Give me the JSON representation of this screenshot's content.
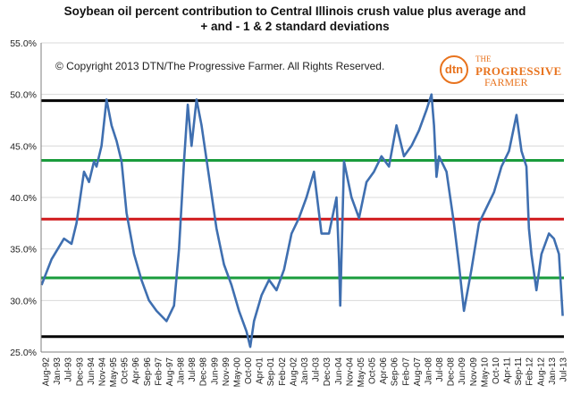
{
  "chart_data": {
    "type": "line",
    "title_line1": "Soybean oil percent contribution to Central Illinois crush value plus average and",
    "title_line2": "+ and - 1 & 2 standard deviations",
    "annotation": "© Copyright 2013 DTN/The Progressive Farmer. All Rights Reserved.",
    "logo": {
      "mark": "dtn",
      "line1": "THE",
      "line2": "PROGRESSIVE",
      "line3": "FARMER"
    },
    "ylim": [
      25.0,
      55.0
    ],
    "y_ticks": [
      "25.0%",
      "30.0%",
      "35.0%",
      "40.0%",
      "45.0%",
      "50.0%",
      "55.0%"
    ],
    "x_ticks": [
      "Aug-92",
      "Jan-93",
      "Jul-93",
      "Dec-93",
      "Jun-94",
      "Nov-94",
      "May-95",
      "Oct-95",
      "Apr-96",
      "Sep-96",
      "Feb-97",
      "Aug-97",
      "Jan-98",
      "Jul-98",
      "Dec-98",
      "Jun-99",
      "Nov-99",
      "May-00",
      "Oct-00",
      "Apr-01",
      "Sep-01",
      "Feb-02",
      "Aug-02",
      "Jan-03",
      "Jul-03",
      "Dec-03",
      "Jun-04",
      "Nov-04",
      "May-05",
      "Oct-05",
      "Apr-06",
      "Sep-06",
      "Feb-07",
      "Aug-07",
      "Jan-08",
      "Jul-08",
      "Dec-08",
      "Jun-09",
      "Nov-09",
      "May-10",
      "Oct-10",
      "Apr-11",
      "Sep-11",
      "Feb-12",
      "Aug-12",
      "Jan-13",
      "Jul-13"
    ],
    "reference_lines": [
      {
        "kind": "plus-2-sd",
        "value": 49.4,
        "color": "#000000"
      },
      {
        "kind": "plus-1-sd",
        "value": 43.6,
        "color": "#1a9c3c"
      },
      {
        "kind": "average",
        "value": 37.9,
        "color": "#d0181b"
      },
      {
        "kind": "minus-1-sd",
        "value": 32.2,
        "color": "#1a9c3c"
      },
      {
        "kind": "minus-2-sd",
        "value": 26.5,
        "color": "#000000"
      }
    ],
    "series": [
      {
        "color": "#3f6fb0",
        "x": [
          1992.6,
          1993.0,
          1993.5,
          1993.8,
          1994.0,
          1994.3,
          1994.5,
          1994.7,
          1994.8,
          1995.0,
          1995.2,
          1995.4,
          1995.6,
          1995.8,
          1996.0,
          1996.3,
          1996.6,
          1996.9,
          1997.2,
          1997.4,
          1997.6,
          1997.9,
          1998.1,
          1998.3,
          1998.45,
          1998.6,
          1998.8,
          1999.0,
          1999.3,
          1999.6,
          1999.9,
          2000.2,
          2000.5,
          2000.8,
          2000.95,
          2001.1,
          2001.4,
          2001.7,
          2002.0,
          2002.3,
          2002.6,
          2002.9,
          2003.2,
          2003.5,
          2003.8,
          2004.1,
          2004.4,
          2004.5,
          2004.55,
          2004.7,
          2005.0,
          2005.3,
          2005.6,
          2005.9,
          2006.2,
          2006.5,
          2006.8,
          2007.1,
          2007.4,
          2007.7,
          2008.0,
          2008.2,
          2008.3,
          2008.4,
          2008.5,
          2008.8,
          2009.1,
          2009.3,
          2009.5,
          2009.8,
          2010.1,
          2010.4,
          2010.7,
          2011.0,
          2011.3,
          2011.6,
          2011.8,
          2012.0,
          2012.1,
          2012.2,
          2012.4,
          2012.6,
          2012.9,
          2013.1,
          2013.3,
          2013.45
        ],
        "values": [
          31.5,
          34.0,
          36.0,
          35.5,
          37.5,
          42.5,
          41.5,
          43.5,
          43.0,
          45.0,
          49.5,
          47.0,
          45.5,
          43.5,
          38.5,
          34.5,
          32.0,
          30.0,
          29.0,
          28.5,
          28.0,
          29.5,
          35.0,
          43.5,
          49.0,
          45.0,
          49.5,
          47.0,
          42.0,
          37.0,
          33.5,
          31.5,
          29.0,
          27.0,
          25.5,
          28.0,
          30.5,
          32.0,
          31.0,
          33.0,
          36.5,
          38.0,
          40.0,
          42.5,
          36.5,
          36.5,
          40.0,
          34.0,
          29.5,
          43.5,
          40.0,
          38.0,
          41.5,
          42.5,
          44.0,
          43.0,
          47.0,
          44.0,
          45.0,
          46.5,
          48.5,
          50.0,
          47.0,
          42.0,
          44.0,
          42.5,
          37.5,
          33.5,
          29.0,
          33.0,
          37.5,
          39.0,
          40.5,
          43.0,
          44.5,
          48.0,
          44.5,
          43.0,
          37.0,
          34.5,
          31.0,
          34.5,
          36.5,
          36.0,
          34.5,
          28.5
        ]
      }
    ]
  }
}
